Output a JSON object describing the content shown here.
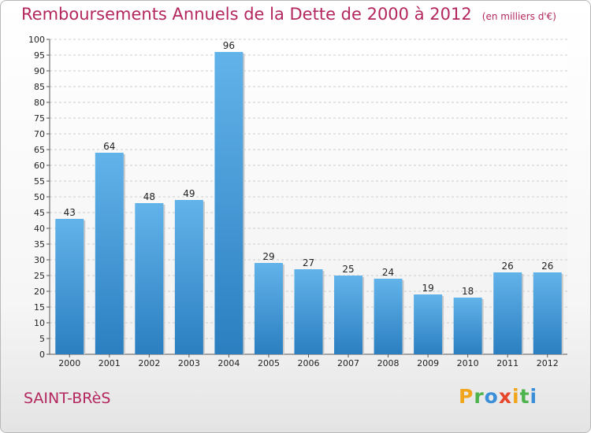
{
  "title": "Remboursements Annuels de la Dette de 2000 à 2012",
  "unit_note": "(en milliers d'€)",
  "commune": "SAINT-BRèS",
  "logo": {
    "text": "Proxiti",
    "letters": [
      {
        "ch": "P",
        "color": "#f0a51a"
      },
      {
        "ch": "r",
        "color": "#4db34d"
      },
      {
        "ch": "o",
        "color": "#3a8fd8"
      },
      {
        "ch": "x",
        "color": "#e8462a"
      },
      {
        "ch": "i",
        "color": "#f0a51a"
      },
      {
        "ch": "t",
        "color": "#4db34d"
      },
      {
        "ch": "i",
        "color": "#3a8fd8"
      }
    ]
  },
  "colors": {
    "title": "#b3275e",
    "bar_top": "#62b3ea",
    "bar_bottom": "#2b7fc0",
    "grid": "#cccccc"
  },
  "chart_data": {
    "type": "bar",
    "categories": [
      "2000",
      "2001",
      "2002",
      "2003",
      "2004",
      "2005",
      "2006",
      "2007",
      "2008",
      "2009",
      "2010",
      "2011",
      "2012"
    ],
    "values": [
      43,
      64,
      48,
      49,
      96,
      29,
      27,
      25,
      24,
      19,
      18,
      26,
      26
    ],
    "title": "Remboursements Annuels de la Dette de 2000 à 2012",
    "xlabel": "",
    "ylabel": "",
    "ylim": [
      0,
      100
    ],
    "yticks": [
      0,
      5,
      10,
      15,
      20,
      25,
      30,
      35,
      40,
      45,
      50,
      55,
      60,
      65,
      70,
      75,
      80,
      85,
      90,
      95,
      100
    ],
    "grid": true
  }
}
